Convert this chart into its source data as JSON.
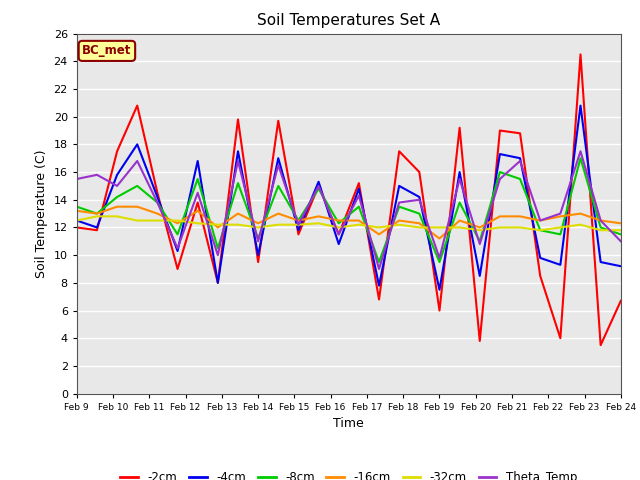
{
  "title": "Soil Temperatures Set A",
  "xlabel": "Time",
  "ylabel": "Soil Temperature (C)",
  "annotation": "BC_met",
  "annotation_color": "#8B0000",
  "annotation_bg": "#FFFF99",
  "ylim": [
    0,
    26
  ],
  "yticks": [
    0,
    2,
    4,
    6,
    8,
    10,
    12,
    14,
    16,
    18,
    20,
    22,
    24,
    26
  ],
  "xtick_labels": [
    "Feb 9",
    "Feb 10",
    "Feb 11",
    "Feb 12",
    "Feb 13",
    "Feb 14",
    "Feb 15",
    "Feb 16",
    "Feb 17",
    "Feb 18",
    "Feb 19",
    "Feb 20",
    "Feb 21",
    "Feb 22",
    "Feb 23",
    "Feb 24"
  ],
  "colors": {
    "-2cm": "#FF0000",
    "-4cm": "#0000EE",
    "-8cm": "#00CC00",
    "-16cm": "#FF8C00",
    "-32cm": "#DDDD00",
    "Theta_Temp": "#9932CC"
  },
  "series": {
    "-2cm": [
      12.0,
      11.8,
      17.5,
      20.8,
      14.5,
      9.0,
      13.8,
      8.0,
      19.8,
      9.5,
      19.7,
      11.5,
      15.0,
      11.5,
      15.2,
      6.8,
      17.5,
      16.0,
      6.0,
      19.2,
      3.8,
      19.0,
      18.8,
      8.5,
      4.0,
      24.5,
      3.5,
      6.7
    ],
    "-4cm": [
      12.5,
      12.0,
      15.8,
      18.0,
      14.2,
      10.3,
      16.8,
      8.0,
      17.5,
      10.0,
      17.0,
      11.8,
      15.3,
      10.8,
      14.8,
      7.8,
      15.0,
      14.2,
      7.5,
      16.0,
      8.5,
      17.3,
      17.0,
      9.8,
      9.3,
      20.8,
      9.5,
      9.2
    ],
    "-8cm": [
      13.5,
      13.0,
      14.2,
      15.0,
      13.8,
      11.5,
      15.5,
      10.5,
      15.2,
      11.2,
      15.0,
      12.5,
      14.8,
      12.3,
      13.5,
      9.5,
      13.5,
      13.0,
      9.5,
      13.8,
      11.0,
      16.0,
      15.5,
      11.8,
      11.5,
      17.0,
      12.0,
      11.5
    ],
    "-16cm": [
      13.2,
      13.0,
      13.5,
      13.5,
      13.0,
      12.3,
      13.2,
      12.0,
      13.0,
      12.3,
      13.0,
      12.5,
      12.8,
      12.5,
      12.5,
      11.5,
      12.5,
      12.3,
      11.2,
      12.5,
      12.0,
      12.8,
      12.8,
      12.5,
      12.8,
      13.0,
      12.5,
      12.3
    ],
    "-32cm": [
      12.5,
      12.8,
      12.8,
      12.5,
      12.5,
      12.5,
      12.3,
      12.2,
      12.2,
      12.0,
      12.2,
      12.2,
      12.3,
      12.0,
      12.2,
      12.0,
      12.2,
      12.0,
      12.0,
      12.0,
      11.8,
      12.0,
      12.0,
      11.8,
      12.0,
      12.2,
      11.8,
      11.8
    ],
    "Theta_Temp": [
      15.5,
      15.8,
      15.0,
      16.8,
      13.8,
      10.5,
      14.5,
      10.0,
      16.8,
      11.0,
      16.5,
      12.2,
      15.0,
      11.5,
      14.3,
      9.0,
      13.8,
      14.0,
      9.8,
      15.5,
      10.8,
      15.5,
      16.8,
      12.5,
      13.0,
      17.5,
      12.5,
      11.0
    ]
  },
  "bg_color": "#FFFFFF",
  "plot_bg_color": "#E8E8E8",
  "grid_color": "#FFFFFF",
  "legend_names": [
    "-2cm",
    "-4cm",
    "-8cm",
    "-16cm",
    "-32cm",
    "Theta_Temp"
  ]
}
